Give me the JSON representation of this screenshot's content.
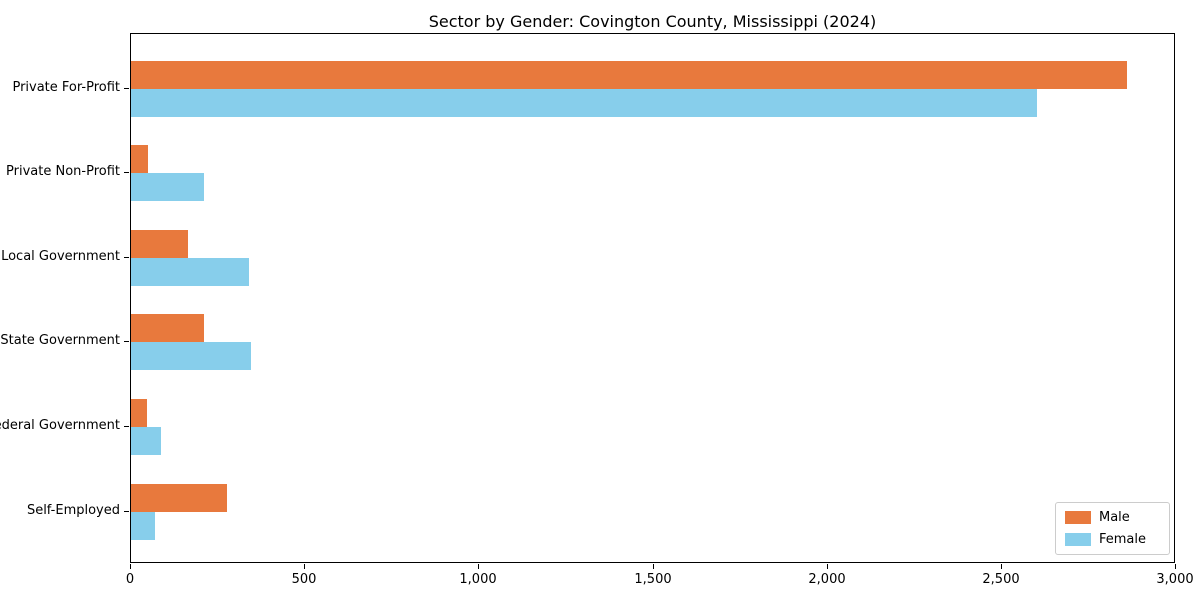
{
  "chart_data": {
    "type": "bar",
    "orientation": "horizontal",
    "title": "Sector by Gender: Covington County, Mississippi (2024)",
    "categories": [
      "Private For-Profit",
      "Private Non-Profit",
      "Local Government",
      "State Government",
      "Federal Government",
      "Self-Employed"
    ],
    "series": [
      {
        "name": "Male",
        "color": "#e8793d",
        "values": [
          2860,
          50,
          165,
          210,
          45,
          275
        ]
      },
      {
        "name": "Female",
        "color": "#87ceeb",
        "values": [
          2600,
          210,
          340,
          345,
          85,
          70
        ]
      }
    ],
    "xlabel": "",
    "ylabel": "",
    "xlim": [
      0,
      3000
    ],
    "xticks": [
      0,
      500,
      1000,
      1500,
      2000,
      2500,
      3000
    ],
    "xtick_labels": [
      "0",
      "500",
      "1,000",
      "1,500",
      "2,000",
      "2,500",
      "3,000"
    ],
    "grid": false,
    "legend_position": "lower right",
    "spine_color": "#000000",
    "background_color": "#ffffff"
  }
}
